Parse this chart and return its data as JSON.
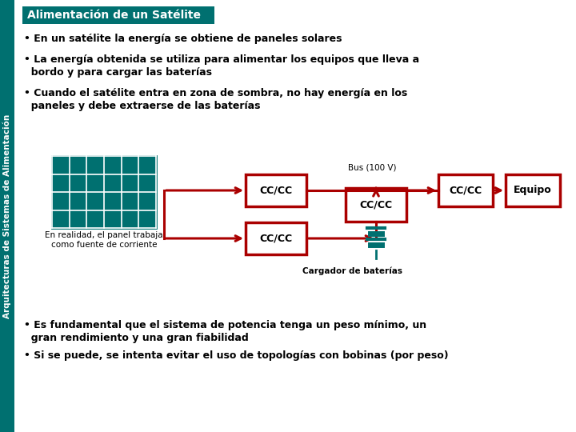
{
  "title": "Alimentación de un Satélite",
  "title_bg": "#007070",
  "title_color": "#ffffff",
  "sidebar_text": "Arquitecturas de Sistemas de Alimentación",
  "sidebar_color": "#007070",
  "bg_color": "#ffffff",
  "red": "#aa0000",
  "teal": "#007070",
  "bullet1": "• En un satélite la energía se obtiene de paneles solares",
  "bullet2a": "• La energía obtenida se utiliza para alimentar los equipos que lleva a",
  "bullet2b": "  bordo y para cargar las baterías",
  "bullet3a": "• Cuando el satélite entra en zona de sombra, no hay energía en los",
  "bullet3b": "  paneles y debe extraerse de las baterías",
  "bullet4a": "• Es fundamental que el sistema de potencia tenga un peso mínimo, un",
  "bullet4b": "  gran rendimiento y una gran fiabilidad",
  "bullet5": "• Si se puede, se intenta evitar el uso de topologías con bobinas (por peso)",
  "diagram_note": "En realidad, el panel trabaja\ncomo fuente de corriente",
  "bus_label": "Bus (100 V)",
  "battery_label": "Cargador de baterías",
  "equipo_label": "Equipo"
}
